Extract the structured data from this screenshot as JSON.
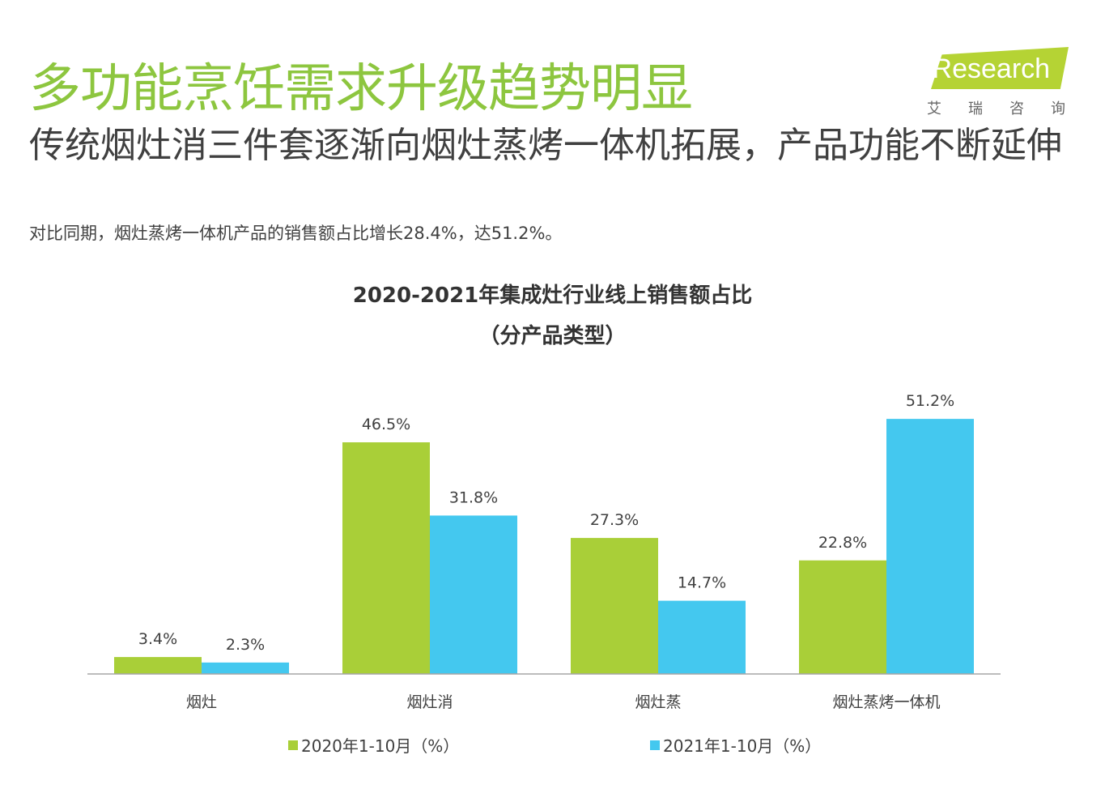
{
  "header": {
    "title": "多功能烹饪需求升级趋势明显",
    "subtitle": "传统烟灶消三件套逐渐向烟灶蒸烤一体机拓展，产品功能不断延伸",
    "note": "对比同期，烟灶蒸烤一体机产品的销售额占比增长28.4%，达51.2%。"
  },
  "logo": {
    "text": "iResearch",
    "cn": "艾瑞咨询"
  },
  "chart_data": {
    "type": "bar",
    "title": "2020-2021年集成灶行业线上销售额占比",
    "subtitle": "（分产品类型）",
    "categories": [
      "烟灶",
      "烟灶消",
      "烟灶蒸",
      "烟灶蒸烤一体机"
    ],
    "series": [
      {
        "name": "2020年1-10月（%）",
        "values": [
          3.4,
          46.5,
          27.3,
          22.8
        ],
        "labels": [
          "3.4%",
          "46.5%",
          "27.3%",
          "22.8%"
        ],
        "color": "#a9cf38"
      },
      {
        "name": "2021年1-10月（%）",
        "values": [
          2.3,
          31.8,
          14.7,
          51.2
        ],
        "labels": [
          "2.3%",
          "31.8%",
          "14.7%",
          "51.2%"
        ],
        "color": "#44c8ef"
      }
    ],
    "ylim": [
      0,
      55
    ],
    "grid": false,
    "legend": "bottom"
  }
}
